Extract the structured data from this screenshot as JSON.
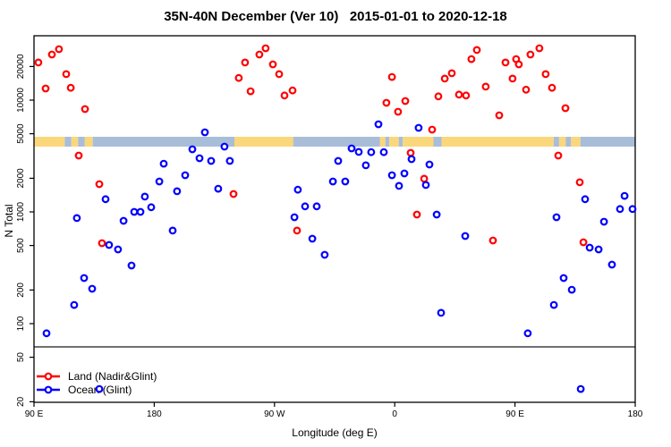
{
  "title": "35N-40N December (Ver 10)   2015-01-01 to 2020-12-18",
  "axes": {
    "y_label": "N Total",
    "x_label": "Longitude (deg E)"
  },
  "legend": [
    {
      "label": "Land (Nadir&Glint)",
      "color": "#FF0000"
    },
    {
      "label": "Ocean (Glint)",
      "color": "#0000FF"
    }
  ],
  "chart_data": {
    "type": "scatter",
    "title": "35N-40N December (Ver 10)   2015-01-01 to 2020-12-18",
    "xlabel": "Longitude (deg E)",
    "ylabel": "N Total",
    "y_scale": "log",
    "ylim": [
      20,
      37000
    ],
    "x_axis": {
      "note": "wrapped longitude axis spanning 450 degrees, 90E to 180 going eastward",
      "ticks": [
        {
          "deg": 90,
          "label": "90 E"
        },
        {
          "deg": 180,
          "label": "180"
        },
        {
          "deg": 270,
          "label": "90 W"
        },
        {
          "deg": 360,
          "label": "0"
        },
        {
          "deg": 450,
          "label": "90 E"
        },
        {
          "deg": 540,
          "label": "180"
        }
      ]
    },
    "y_axis": {
      "ticks": [
        20,
        50,
        100,
        200,
        500,
        1000,
        2000,
        5000,
        10000,
        20000
      ]
    },
    "threshold_line_value": 62,
    "surface_band": {
      "top_value": 4700,
      "bottom_value": 3840,
      "land_color": "#FBD77B",
      "ocean_color": "#A8BDD8",
      "segments": [
        {
          "from": 90,
          "to": 113,
          "type": "land"
        },
        {
          "from": 113,
          "to": 118,
          "type": "ocean"
        },
        {
          "from": 118,
          "to": 123,
          "type": "land"
        },
        {
          "from": 123,
          "to": 128,
          "type": "ocean"
        },
        {
          "from": 128,
          "to": 134,
          "type": "land"
        },
        {
          "from": 134,
          "to": 240,
          "type": "ocean"
        },
        {
          "from": 240,
          "to": 284,
          "type": "land"
        },
        {
          "from": 284,
          "to": 349,
          "type": "ocean"
        },
        {
          "from": 349,
          "to": 353,
          "type": "land"
        },
        {
          "from": 353,
          "to": 356,
          "type": "ocean"
        },
        {
          "from": 356,
          "to": 363,
          "type": "land"
        },
        {
          "from": 363,
          "to": 366,
          "type": "ocean"
        },
        {
          "from": 366,
          "to": 389,
          "type": "land"
        },
        {
          "from": 389,
          "to": 395,
          "type": "ocean"
        },
        {
          "from": 395,
          "to": 479,
          "type": "land"
        },
        {
          "from": 479,
          "to": 483,
          "type": "ocean"
        },
        {
          "from": 483,
          "to": 488,
          "type": "land"
        },
        {
          "from": 488,
          "to": 492,
          "type": "ocean"
        },
        {
          "from": 492,
          "to": 499,
          "type": "land"
        },
        {
          "from": 499,
          "to": 540,
          "type": "ocean"
        }
      ]
    },
    "series": [
      {
        "name": "Land (Nadir&Glint)",
        "color": "#FF0000",
        "points": [
          [
            93.3,
            21700
          ],
          [
            103.4,
            25600
          ],
          [
            108.7,
            28600
          ],
          [
            114.1,
            17100
          ],
          [
            98.7,
            12700
          ],
          [
            117.5,
            12900
          ],
          [
            128.2,
            8320
          ],
          [
            123.5,
            3190
          ],
          [
            138.9,
            1770
          ],
          [
            140.9,
            525
          ],
          [
            243.3,
            15800
          ],
          [
            239.3,
            1445
          ],
          [
            248.0,
            21700
          ],
          [
            258.7,
            25600
          ],
          [
            263.4,
            29100
          ],
          [
            268.8,
            20900
          ],
          [
            273.5,
            17100
          ],
          [
            252.1,
            12000
          ],
          [
            277.5,
            11000
          ],
          [
            283.5,
            12200
          ],
          [
            286.9,
            680
          ],
          [
            357.9,
            16100
          ],
          [
            353.8,
            9460
          ],
          [
            367.9,
            9820
          ],
          [
            392.7,
            10800
          ],
          [
            362.5,
            7870
          ],
          [
            388.0,
            5450
          ],
          [
            371.9,
            3370
          ],
          [
            382.0,
            1980
          ],
          [
            376.6,
            946
          ],
          [
            421.5,
            28100
          ],
          [
            417.4,
            23300
          ],
          [
            402.7,
            17400
          ],
          [
            397.4,
            15600
          ],
          [
            408.1,
            11200
          ],
          [
            413.4,
            11000
          ],
          [
            428.1,
            13200
          ],
          [
            442.9,
            21700
          ],
          [
            450.9,
            23300
          ],
          [
            452.9,
            20900
          ],
          [
            461.6,
            25600
          ],
          [
            468.3,
            29100
          ],
          [
            448.2,
            15600
          ],
          [
            458.3,
            12400
          ],
          [
            473.0,
            17100
          ],
          [
            438.2,
            7310
          ],
          [
            433.5,
            555
          ],
          [
            477.7,
            12900
          ],
          [
            487.8,
            8470
          ],
          [
            482.4,
            3190
          ],
          [
            498.5,
            1840
          ],
          [
            501.2,
            535
          ]
        ]
      },
      {
        "name": "Ocean (Glint)",
        "color": "#0000FF",
        "points": [
          [
            143.6,
            1300
          ],
          [
            122.1,
            880
          ],
          [
            157.0,
            832
          ],
          [
            146.2,
            506
          ],
          [
            152.9,
            461
          ],
          [
            163.0,
            331
          ],
          [
            127.5,
            256
          ],
          [
            133.5,
            205
          ],
          [
            120.1,
            147
          ],
          [
            99.4,
            82
          ],
          [
            138.9,
            26
          ],
          [
            217.9,
            5150
          ],
          [
            208.5,
            3630
          ],
          [
            232.6,
            3840
          ],
          [
            213.9,
            3020
          ],
          [
            222.6,
            2860
          ],
          [
            236.6,
            2860
          ],
          [
            187.1,
            2700
          ],
          [
            203.2,
            2130
          ],
          [
            183.8,
            1870
          ],
          [
            197.1,
            1530
          ],
          [
            227.9,
            1610
          ],
          [
            173.0,
            1370
          ],
          [
            177.7,
            1100
          ],
          [
            169.7,
            1000
          ],
          [
            165.0,
            1000
          ],
          [
            193.8,
            680
          ],
          [
            317.7,
            2860
          ],
          [
            313.7,
            1870
          ],
          [
            287.5,
            1580
          ],
          [
            292.9,
            1120
          ],
          [
            301.6,
            1120
          ],
          [
            284.9,
            896
          ],
          [
            298.3,
            575
          ],
          [
            307.6,
            413
          ],
          [
            347.8,
            6080
          ],
          [
            377.9,
            5650
          ],
          [
            327.7,
            3700
          ],
          [
            333.1,
            3440
          ],
          [
            342.4,
            3420
          ],
          [
            351.8,
            3420
          ],
          [
            338.4,
            2610
          ],
          [
            323.0,
            1870
          ],
          [
            357.9,
            2130
          ],
          [
            367.2,
            2210
          ],
          [
            363.2,
            1710
          ],
          [
            386.0,
            2655
          ],
          [
            383.3,
            1740
          ],
          [
            372.6,
            2965
          ],
          [
            391.4,
            946
          ],
          [
            394.7,
            125
          ],
          [
            412.8,
            608
          ],
          [
            459.6,
            82
          ],
          [
            502.5,
            1300
          ],
          [
            532.0,
            1390
          ],
          [
            528.6,
            1060
          ],
          [
            538.0,
            1060
          ],
          [
            481.1,
            896
          ],
          [
            516.6,
            817
          ],
          [
            505.9,
            479
          ],
          [
            512.6,
            461
          ],
          [
            522.6,
            337
          ],
          [
            486.4,
            256
          ],
          [
            492.5,
            201
          ],
          [
            479.1,
            147
          ],
          [
            499.2,
            26
          ]
        ]
      }
    ]
  }
}
